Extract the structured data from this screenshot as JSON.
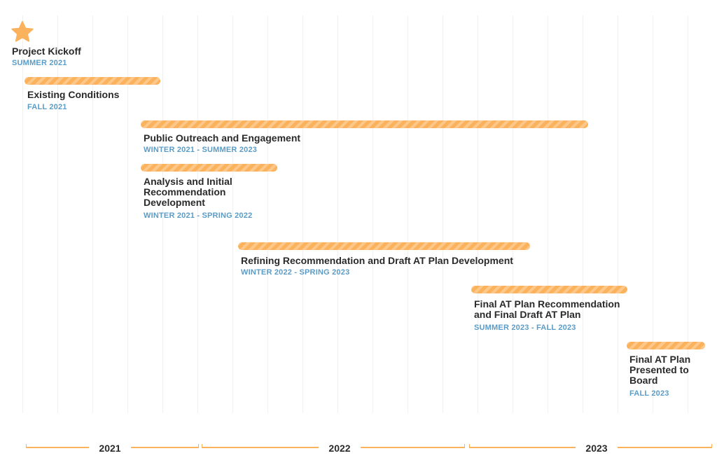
{
  "chart_data": {
    "type": "timeline",
    "milestone": {
      "label": "Project Kickoff",
      "period": "SUMMER 2021",
      "icon": "star-icon"
    },
    "tasks": [
      {
        "label": "Existing Conditions",
        "period": "FALL 2021"
      },
      {
        "label": "Public Outreach and Engagement",
        "period": "WINTER 2021 - SUMMER 2023"
      },
      {
        "label": "Analysis and Initial Recommendation Development",
        "period": "WINTER 2021 - SPRING 2022"
      },
      {
        "label": "Refining Recommendation and Draft AT Plan Development",
        "period": "WINTER 2022 - SPRING 2023"
      },
      {
        "label": "Final AT Plan Recommendation and Final Draft AT Plan",
        "period": "SUMMER 2023 - FALL 2023"
      },
      {
        "label": "Final AT Plan Presented to Board",
        "period": "FALL 2023"
      }
    ],
    "x_axis": {
      "years": [
        "2021",
        "2022",
        "2023"
      ]
    },
    "grid": true,
    "colors": {
      "bar": "#fbb25c",
      "label": "#2a2a2a",
      "period": "#5b9cc7",
      "grid": "#f1f1f1"
    }
  }
}
